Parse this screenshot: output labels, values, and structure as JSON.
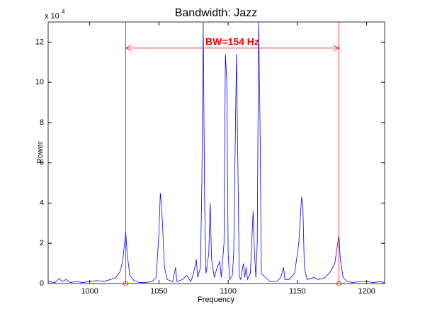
{
  "chart_data": {
    "type": "line",
    "title": "Bandwidth: Jazz",
    "x_label": "Frequency",
    "y_label": "Power",
    "y_scale_label": "x 10",
    "y_scale_power": "4",
    "xlim": [
      970,
      1213
    ],
    "ylim": [
      0,
      13
    ],
    "xticks": [
      1000,
      1050,
      1100,
      1150,
      1200
    ],
    "yticks": [
      0,
      2,
      4,
      6,
      8,
      10,
      12
    ],
    "grid": false,
    "x": [
      970,
      975,
      978,
      980,
      983,
      986,
      990,
      995,
      1000,
      1005,
      1010,
      1015,
      1019,
      1022,
      1024,
      1026,
      1027,
      1029,
      1032,
      1036,
      1040,
      1045,
      1048,
      1050,
      1051,
      1052,
      1054,
      1056,
      1060,
      1062,
      1063,
      1067,
      1070,
      1073,
      1075,
      1077,
      1078,
      1080,
      1081,
      1082,
      1083,
      1084,
      1086,
      1087,
      1088,
      1090,
      1092,
      1094,
      1095,
      1097,
      1098,
      1099,
      1100,
      1101,
      1103,
      1104,
      1106,
      1107,
      1108,
      1109,
      1111,
      1112,
      1113,
      1114,
      1116,
      1117,
      1118,
      1119,
      1120,
      1121,
      1122,
      1123,
      1124,
      1127,
      1130,
      1135,
      1138,
      1140,
      1141,
      1144,
      1148,
      1151,
      1153,
      1154,
      1155,
      1157,
      1162,
      1165,
      1170,
      1174,
      1177,
      1180,
      1181,
      1183,
      1186,
      1190,
      1195,
      1200,
      1205,
      1210,
      1213
    ],
    "series": [
      {
        "color": "#0000ff",
        "values": [
          0.1,
          0.05,
          0.25,
          0.1,
          0.2,
          0.05,
          0.1,
          0.05,
          0.1,
          0.15,
          0.1,
          0.2,
          0.3,
          0.6,
          1.2,
          2.6,
          1.5,
          0.4,
          0.15,
          0.05,
          0.05,
          0.1,
          0.3,
          2.5,
          4.5,
          3.8,
          0.8,
          0.2,
          0.1,
          0.8,
          0.1,
          0.2,
          0.4,
          0.1,
          0.5,
          1.2,
          0.3,
          0.8,
          5,
          13,
          4,
          0.5,
          1.5,
          4.0,
          1.2,
          0.3,
          0.8,
          1.1,
          0.3,
          2,
          11.4,
          10.1,
          1.5,
          0.2,
          0.4,
          1.5,
          11.4,
          6,
          0.4,
          0.2,
          1.0,
          0.3,
          0.8,
          0.2,
          0.5,
          2,
          3.6,
          1.5,
          0.3,
          2,
          13,
          8,
          0.5,
          0.3,
          0.1,
          0.1,
          0.3,
          0.8,
          0.2,
          0.2,
          0.5,
          2,
          4.3,
          3.8,
          0.8,
          0.2,
          0.3,
          0.2,
          0.3,
          0.6,
          1.0,
          2.4,
          1.2,
          0.3,
          0.1,
          0.05,
          0.1,
          0.1,
          0.05,
          0.1,
          0.05
        ]
      }
    ],
    "bandwidth_edges": [
      1026,
      1180
    ],
    "bandwidth_color": "#ff0000",
    "annotation": "BW=154 Hz",
    "annotation_y": 11.7
  }
}
